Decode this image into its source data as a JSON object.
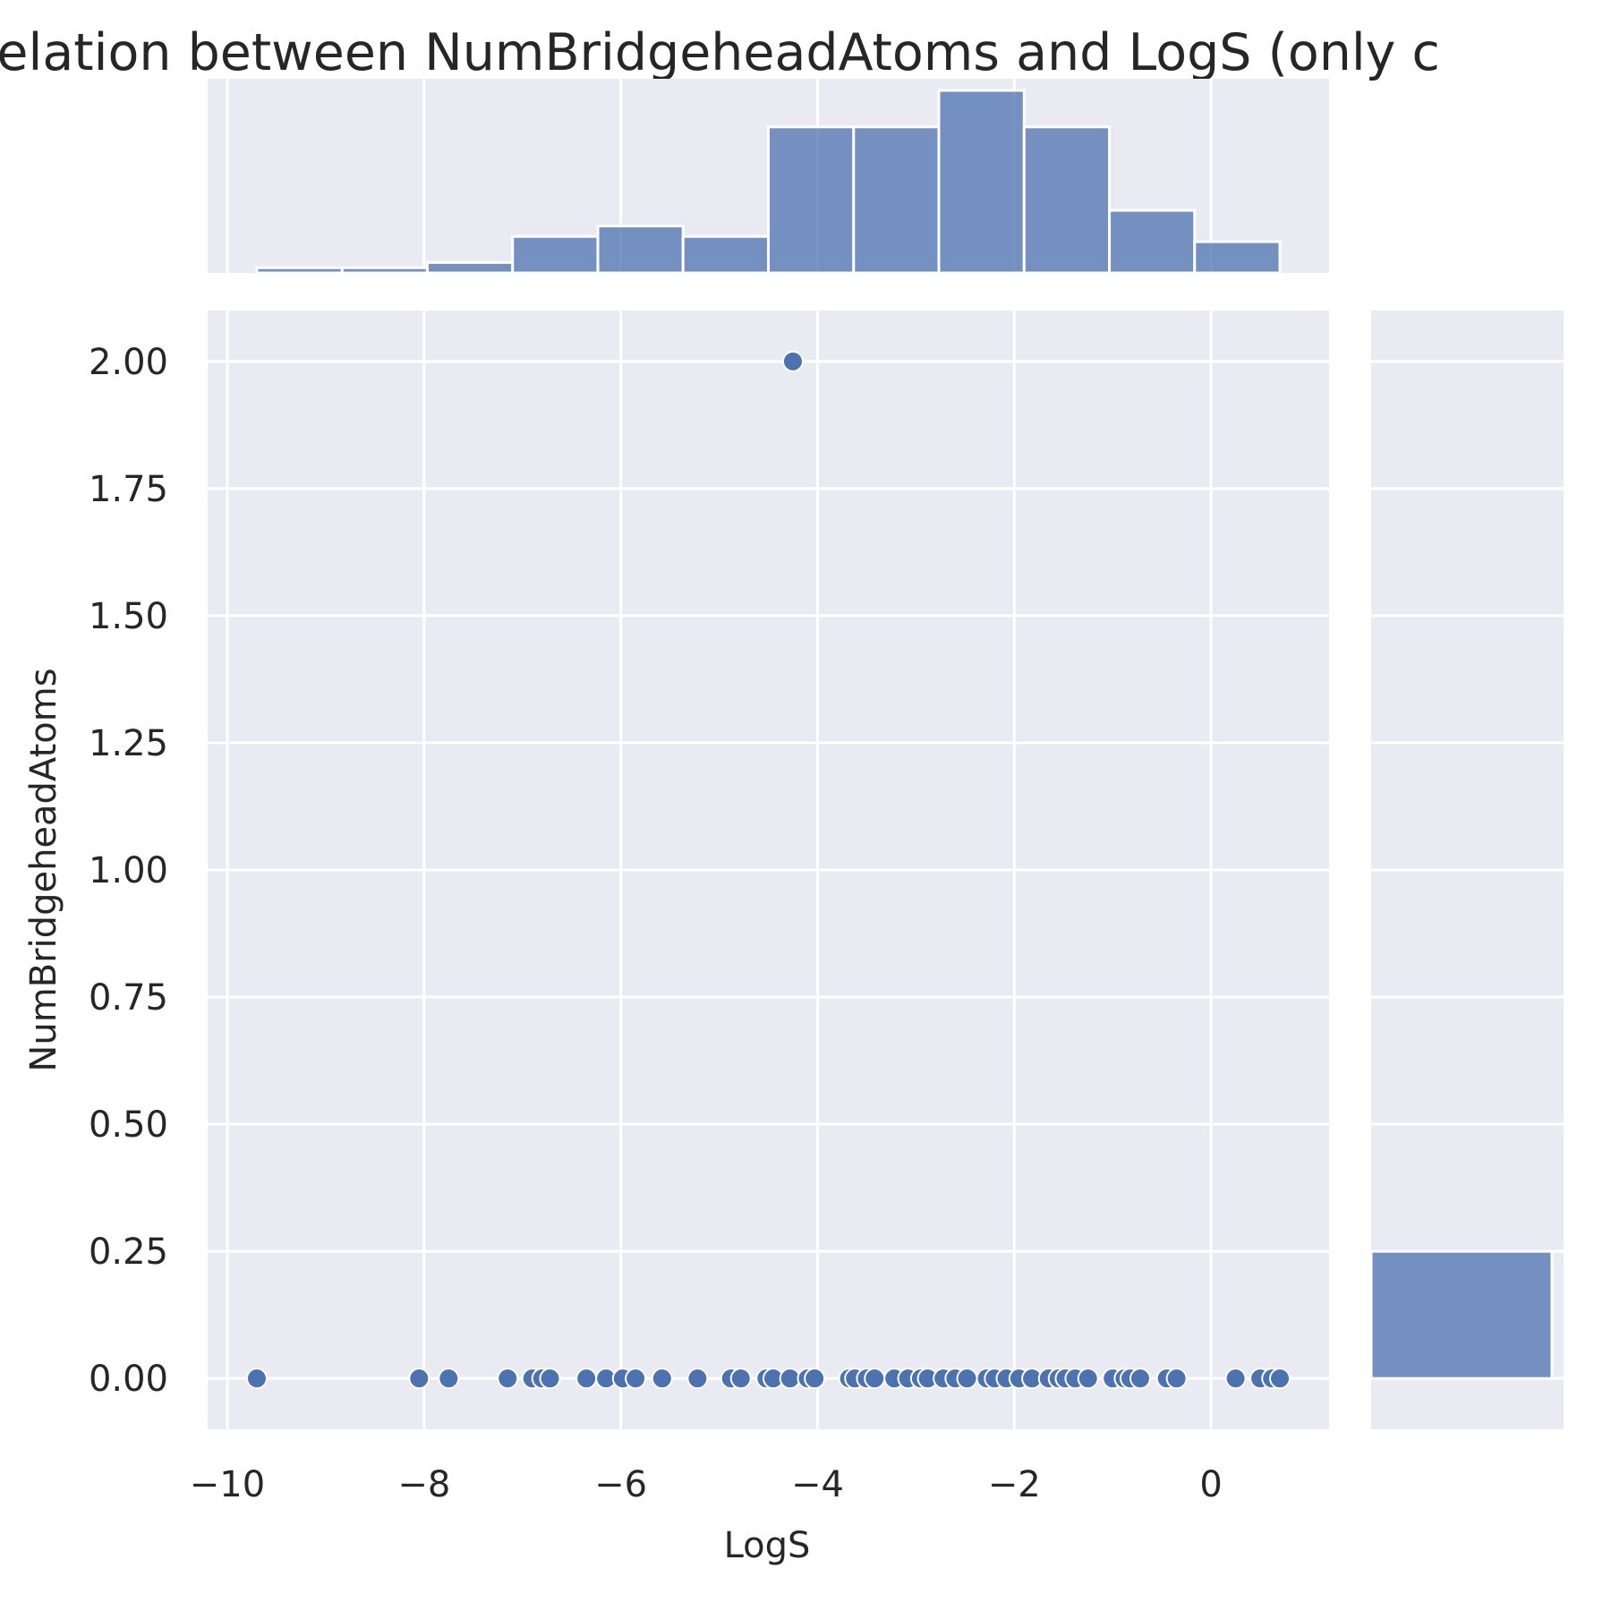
{
  "chart_data": {
    "type": "scatter",
    "title": "Correlation between NumBridgeheadAtoms and LogS (only c",
    "xlabel": "LogS",
    "ylabel": "NumBridgeheadAtoms",
    "xlim": [
      -10.2,
      1.2
    ],
    "ylim": [
      -0.1,
      2.1
    ],
    "grid": true,
    "x_ticks": [
      -10,
      -8,
      -6,
      -4,
      -2,
      0
    ],
    "x_tick_labels": [
      "−10",
      "−8",
      "−6",
      "−4",
      "−2",
      "0"
    ],
    "y_ticks": [
      0.0,
      0.25,
      0.5,
      0.75,
      1.0,
      1.25,
      1.5,
      1.75,
      2.0
    ],
    "y_tick_labels": [
      "0.00",
      "0.25",
      "0.50",
      "0.75",
      "1.00",
      "1.25",
      "1.50",
      "1.75",
      "2.00"
    ],
    "points": [
      {
        "x": -9.7,
        "y": 0
      },
      {
        "x": -8.05,
        "y": 0
      },
      {
        "x": -7.75,
        "y": 0
      },
      {
        "x": -7.15,
        "y": 0
      },
      {
        "x": -6.9,
        "y": 0
      },
      {
        "x": -6.8,
        "y": 0
      },
      {
        "x": -6.72,
        "y": 0
      },
      {
        "x": -6.35,
        "y": 0
      },
      {
        "x": -6.15,
        "y": 0
      },
      {
        "x": -5.98,
        "y": 0
      },
      {
        "x": -5.85,
        "y": 0
      },
      {
        "x": -5.58,
        "y": 0
      },
      {
        "x": -5.22,
        "y": 0
      },
      {
        "x": -4.88,
        "y": 0
      },
      {
        "x": -4.78,
        "y": 0
      },
      {
        "x": -4.52,
        "y": 0
      },
      {
        "x": -4.45,
        "y": 0
      },
      {
        "x": -4.28,
        "y": 0
      },
      {
        "x": -4.1,
        "y": 0
      },
      {
        "x": -4.03,
        "y": 0
      },
      {
        "x": -3.68,
        "y": 0
      },
      {
        "x": -3.62,
        "y": 0
      },
      {
        "x": -3.5,
        "y": 0
      },
      {
        "x": -3.42,
        "y": 0
      },
      {
        "x": -3.22,
        "y": 0
      },
      {
        "x": -3.08,
        "y": 0
      },
      {
        "x": -2.95,
        "y": 0
      },
      {
        "x": -2.88,
        "y": 0
      },
      {
        "x": -2.72,
        "y": 0
      },
      {
        "x": -2.6,
        "y": 0
      },
      {
        "x": -2.48,
        "y": 0
      },
      {
        "x": -2.28,
        "y": 0
      },
      {
        "x": -2.2,
        "y": 0
      },
      {
        "x": -2.08,
        "y": 0
      },
      {
        "x": -1.95,
        "y": 0
      },
      {
        "x": -1.82,
        "y": 0
      },
      {
        "x": -1.65,
        "y": 0
      },
      {
        "x": -1.55,
        "y": 0
      },
      {
        "x": -1.48,
        "y": 0
      },
      {
        "x": -1.38,
        "y": 0
      },
      {
        "x": -1.25,
        "y": 0
      },
      {
        "x": -1.0,
        "y": 0
      },
      {
        "x": -0.88,
        "y": 0
      },
      {
        "x": -0.82,
        "y": 0
      },
      {
        "x": -0.72,
        "y": 0
      },
      {
        "x": -0.45,
        "y": 0
      },
      {
        "x": -0.35,
        "y": 0
      },
      {
        "x": 0.25,
        "y": 0
      },
      {
        "x": 0.5,
        "y": 0
      },
      {
        "x": 0.62,
        "y": 0
      },
      {
        "x": 0.7,
        "y": 0
      },
      {
        "x": -4.25,
        "y": 2
      }
    ],
    "marginal_x_histogram": {
      "bin_edges": [
        -9.7,
        -8.833,
        -7.967,
        -7.1,
        -6.233,
        -5.367,
        -4.5,
        -3.633,
        -2.767,
        -1.9,
        -1.033,
        -0.167,
        0.7
      ],
      "counts": [
        1,
        1,
        2,
        7,
        9,
        7,
        28,
        28,
        35,
        28,
        12,
        6
      ]
    },
    "marginal_y_histogram": {
      "bin_edges": [
        0,
        0.25
      ],
      "counts": [
        51
      ],
      "note_bins_drawn": 1
    },
    "colors": {
      "point_fill": "#4c72b0",
      "bar_fill": "#4c72b0",
      "background": "#eaeaf2",
      "grid": "#ffffff",
      "text": "#262626"
    }
  }
}
